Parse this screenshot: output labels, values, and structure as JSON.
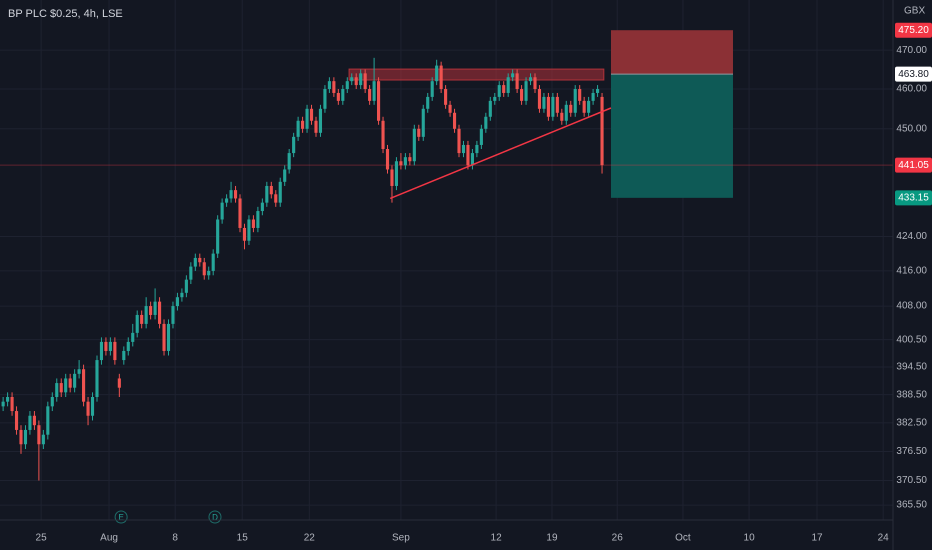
{
  "chart_data": {
    "type": "candlestick",
    "title": "BP PLC $0.25, 4h, LSE",
    "unit": "GBX",
    "log_scale": true,
    "grid": true,
    "up_color": "#26a69a",
    "down_color": "#ef5350",
    "ylim": [
      362.5,
      483.2
    ],
    "yticks": [
      {
        "value": 365.5,
        "label": "365.50"
      },
      {
        "value": 370.5,
        "label": "370.50"
      },
      {
        "value": 376.5,
        "label": "376.50"
      },
      {
        "value": 382.5,
        "label": "382.50"
      },
      {
        "value": 388.5,
        "label": "388.50"
      },
      {
        "value": 394.5,
        "label": "394.50"
      },
      {
        "value": 400.5,
        "label": "400.50"
      },
      {
        "value": 408,
        "label": "408.00"
      },
      {
        "value": 416,
        "label": "416.00"
      },
      {
        "value": 424,
        "label": "424.00"
      },
      {
        "value": 450,
        "label": "450.00"
      },
      {
        "value": 460,
        "label": "460.00"
      },
      {
        "value": 470,
        "label": "470.00"
      }
    ],
    "xlim": [
      -0.7,
      199.1
    ],
    "xticks": [
      {
        "value": 8.5,
        "label": "25"
      },
      {
        "value": 23.7,
        "label": "Aug"
      },
      {
        "value": 38.5,
        "label": "8"
      },
      {
        "value": 53.5,
        "label": "15"
      },
      {
        "value": 68.5,
        "label": "22"
      },
      {
        "value": 89,
        "label": "Sep"
      },
      {
        "value": 110.3,
        "label": "12"
      },
      {
        "value": 122.8,
        "label": "19"
      },
      {
        "value": 137.4,
        "label": "26"
      },
      {
        "value": 152.1,
        "label": "Oct"
      },
      {
        "value": 166.9,
        "label": "10"
      },
      {
        "value": 182.1,
        "label": "17"
      },
      {
        "value": 196.9,
        "label": "24"
      }
    ],
    "candles": [
      [
        386,
        388,
        385,
        387
      ],
      [
        387,
        389,
        386,
        388
      ],
      [
        388,
        389,
        384,
        385
      ],
      [
        385,
        386,
        380,
        381
      ],
      [
        381,
        382,
        376,
        378
      ],
      [
        378,
        382,
        377,
        381
      ],
      [
        381,
        385,
        380,
        384
      ],
      [
        384,
        385,
        381,
        382
      ],
      [
        382,
        383,
        370.5,
        378
      ],
      [
        378,
        381,
        377,
        380
      ],
      [
        380,
        387,
        379,
        386
      ],
      [
        386,
        389,
        385,
        388
      ],
      [
        388,
        392,
        387,
        391
      ],
      [
        391,
        392,
        388,
        389
      ],
      [
        389,
        393,
        388,
        392
      ],
      [
        392,
        393,
        389,
        390
      ],
      [
        390,
        394,
        389,
        393
      ],
      [
        393,
        396,
        392,
        394
      ],
      [
        394,
        395,
        386,
        387
      ],
      [
        387,
        388,
        382,
        384
      ],
      [
        384,
        389,
        383,
        388
      ],
      [
        388,
        397,
        387,
        396
      ],
      [
        396,
        401,
        395,
        400
      ],
      [
        400,
        401,
        397,
        398
      ],
      [
        398,
        401,
        397,
        400
      ],
      [
        400,
        401,
        395,
        396
      ],
      [
        392,
        393,
        388,
        390
      ],
      [
        396,
        399,
        395,
        398
      ],
      [
        398,
        401,
        397,
        400
      ],
      [
        400,
        404,
        399,
        402
      ],
      [
        402,
        407,
        401,
        406
      ],
      [
        406,
        407,
        403,
        404
      ],
      [
        404,
        410,
        403,
        408
      ],
      [
        408,
        409,
        405,
        406
      ],
      [
        406,
        412,
        405,
        409
      ],
      [
        409,
        410,
        403,
        404
      ],
      [
        404,
        405,
        397,
        398
      ],
      [
        398,
        405,
        397,
        404
      ],
      [
        404,
        409,
        403,
        408
      ],
      [
        408,
        411,
        407,
        410
      ],
      [
        410,
        412,
        409,
        411
      ],
      [
        411,
        415,
        410,
        414
      ],
      [
        414,
        418,
        413,
        417
      ],
      [
        417,
        420,
        416,
        419
      ],
      [
        419,
        420,
        417,
        418
      ],
      [
        418,
        419,
        414,
        415
      ],
      [
        415,
        417,
        414,
        416
      ],
      [
        416,
        421,
        415,
        420
      ],
      [
        420,
        429,
        419,
        428
      ],
      [
        428,
        433,
        427,
        432
      ],
      [
        432,
        434,
        431,
        433
      ],
      [
        433,
        437,
        432,
        435
      ],
      [
        435,
        436,
        432,
        433
      ],
      [
        433,
        434,
        425,
        426
      ],
      [
        426,
        427,
        421,
        423
      ],
      [
        423,
        429,
        422,
        428
      ],
      [
        428,
        429,
        425,
        426
      ],
      [
        426,
        431,
        425,
        430
      ],
      [
        430,
        433,
        429,
        432
      ],
      [
        432,
        437,
        431,
        436
      ],
      [
        436,
        437,
        433,
        434
      ],
      [
        434,
        435,
        431,
        432
      ],
      [
        432,
        438,
        431,
        437
      ],
      [
        437,
        441,
        436,
        440
      ],
      [
        440,
        445,
        439,
        444
      ],
      [
        444,
        449,
        443,
        448
      ],
      [
        448,
        453,
        447,
        452
      ],
      [
        452,
        453,
        449,
        450
      ],
      [
        450,
        456,
        449,
        455
      ],
      [
        455,
        456,
        451,
        452
      ],
      [
        452,
        453,
        448,
        449
      ],
      [
        449,
        456,
        448,
        455
      ],
      [
        455,
        461,
        454,
        460
      ],
      [
        460,
        463,
        459,
        462
      ],
      [
        462,
        463,
        458,
        459
      ],
      [
        459,
        460,
        456,
        457
      ],
      [
        457,
        461,
        456,
        460
      ],
      [
        460,
        463,
        459,
        462
      ],
      [
        462,
        464,
        461,
        463
      ],
      [
        463,
        464,
        460,
        461
      ],
      [
        461,
        465,
        460,
        464
      ],
      [
        464,
        465,
        459,
        460
      ],
      [
        460,
        461,
        456,
        457
      ],
      [
        457,
        468,
        456,
        462
      ],
      [
        462,
        463,
        451,
        452
      ],
      [
        452,
        453,
        444,
        445
      ],
      [
        445,
        446,
        439,
        440
      ],
      [
        440,
        441,
        432,
        436
      ],
      [
        436,
        443,
        435,
        442
      ],
      [
        442,
        444,
        440,
        441
      ],
      [
        441,
        444,
        440,
        443
      ],
      [
        443,
        444,
        441,
        442
      ],
      [
        442,
        451,
        441,
        450
      ],
      [
        450,
        451,
        447,
        448
      ],
      [
        448,
        456,
        447,
        455
      ],
      [
        455,
        459,
        454,
        458
      ],
      [
        458,
        463,
        457,
        462
      ],
      [
        462,
        467.5,
        461,
        466
      ],
      [
        466,
        467,
        459,
        460
      ],
      [
        460,
        461,
        455,
        456
      ],
      [
        456,
        457,
        453,
        454
      ],
      [
        454,
        455,
        449,
        450
      ],
      [
        450,
        451,
        443,
        444
      ],
      [
        444,
        447,
        443,
        446
      ],
      [
        446,
        447,
        440,
        441
      ],
      [
        441,
        445,
        440,
        444
      ],
      [
        444,
        447,
        443,
        446
      ],
      [
        446,
        451,
        445,
        450
      ],
      [
        450,
        454,
        449,
        453
      ],
      [
        453,
        458,
        452,
        457
      ],
      [
        457,
        459,
        456,
        458
      ],
      [
        458,
        462,
        457,
        461
      ],
      [
        461,
        462,
        458,
        459
      ],
      [
        459,
        464,
        458,
        463
      ],
      [
        463,
        465,
        462,
        464
      ],
      [
        464,
        465,
        459,
        460
      ],
      [
        460,
        461,
        456,
        457
      ],
      [
        457,
        463,
        456,
        462
      ],
      [
        462,
        464,
        461,
        463
      ],
      [
        463,
        464,
        459,
        460
      ],
      [
        460,
        461,
        454,
        455
      ],
      [
        455,
        459,
        454,
        458
      ],
      [
        458,
        459,
        452,
        453
      ],
      [
        453,
        459,
        452,
        458
      ],
      [
        458,
        459,
        453,
        454
      ],
      [
        454,
        455,
        451,
        452
      ],
      [
        452,
        457,
        451,
        456
      ],
      [
        456,
        457,
        453,
        454
      ],
      [
        454,
        461,
        453,
        460
      ],
      [
        460,
        461,
        456,
        457
      ],
      [
        457,
        458,
        453,
        454
      ],
      [
        454,
        458,
        453,
        457
      ],
      [
        457,
        460,
        456,
        459
      ],
      [
        459,
        461,
        458,
        460
      ],
      [
        458,
        459,
        439,
        441.05
      ]
    ],
    "resistance_zone": {
      "x": [
        77.4,
        134.4
      ],
      "y": [
        462.3,
        465.1
      ],
      "color": "#b2323a"
    },
    "trendline": {
      "x": [
        86.6,
        136
      ],
      "y": [
        433,
        455.2
      ],
      "color": "#f23645"
    },
    "position": {
      "x": [
        136,
        163.3
      ],
      "stop": 475.2,
      "stop_label": "475.20",
      "entry": 463.8,
      "entry_label": "463.80",
      "target": 433.15,
      "target_label": "433.15",
      "stop_color": "#8b3035",
      "target_color": "#0e5a56"
    },
    "last_price": {
      "value": 441.05,
      "label": "441.05",
      "color": "#f23645"
    },
    "events": [
      {
        "x": 26.4,
        "label": "E"
      },
      {
        "x": 47.4,
        "label": "D"
      }
    ]
  }
}
